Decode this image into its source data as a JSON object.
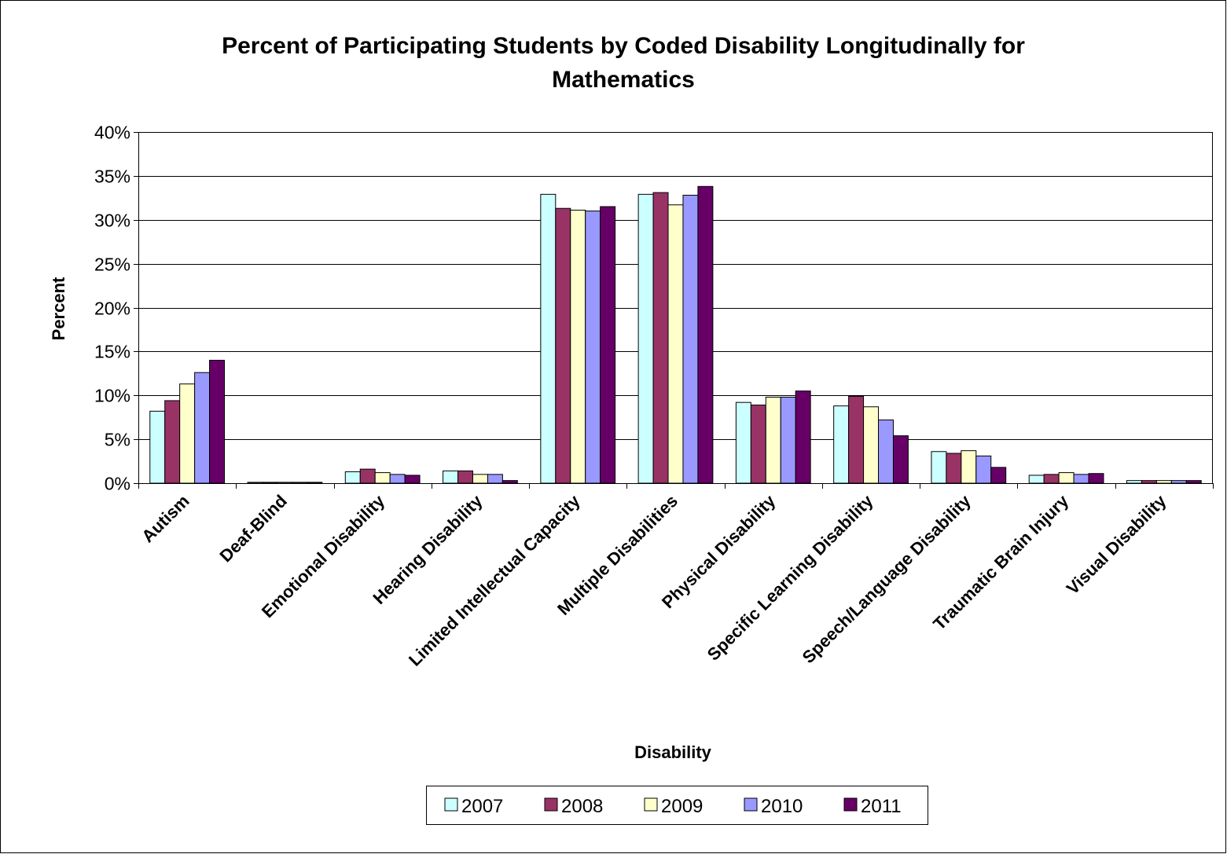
{
  "chart_data": {
    "type": "bar",
    "title": "Percent of Participating Students by Coded Disability Longitudinally for Mathematics",
    "title_lines": [
      "Percent of Participating Students by Coded Disability Longitudinally for",
      "Mathematics"
    ],
    "xlabel": "Disability",
    "ylabel": "Percent",
    "ylim": [
      0,
      40
    ],
    "yticks": [
      "0%",
      "5%",
      "10%",
      "15%",
      "20%",
      "25%",
      "30%",
      "35%",
      "40%"
    ],
    "grid": true,
    "legend_position": "bottom",
    "categories": [
      "Autism",
      "Deaf-Blind",
      "Emotional Disability",
      "Hearing Disability",
      "Limited Intellectual Capacity",
      "Multiple Disabilities",
      "Physical Disability",
      "Specific Learning Disability",
      "Speech/Language Disability",
      "Traumatic Brain Injury",
      "Visual Disability"
    ],
    "series": [
      {
        "name": "2007",
        "color": "#ccffff",
        "values": [
          8.2,
          0.1,
          1.3,
          1.4,
          32.9,
          32.9,
          9.2,
          8.8,
          3.6,
          0.9,
          0.3
        ]
      },
      {
        "name": "2008",
        "color": "#993366",
        "values": [
          9.4,
          0.1,
          1.6,
          1.4,
          31.3,
          33.1,
          8.9,
          9.9,
          3.4,
          1.0,
          0.3
        ]
      },
      {
        "name": "2009",
        "color": "#ffffcc",
        "values": [
          11.3,
          0.1,
          1.2,
          1.0,
          31.1,
          31.7,
          9.8,
          8.7,
          3.7,
          1.2,
          0.3
        ]
      },
      {
        "name": "2010",
        "color": "#9999ff",
        "values": [
          12.6,
          0.1,
          1.0,
          1.0,
          31.0,
          32.8,
          9.8,
          7.2,
          3.1,
          1.0,
          0.3
        ]
      },
      {
        "name": "2011",
        "color": "#660066",
        "values": [
          14.0,
          0.1,
          0.9,
          0.3,
          31.5,
          33.8,
          10.5,
          5.4,
          1.8,
          1.1,
          0.3
        ]
      }
    ]
  }
}
